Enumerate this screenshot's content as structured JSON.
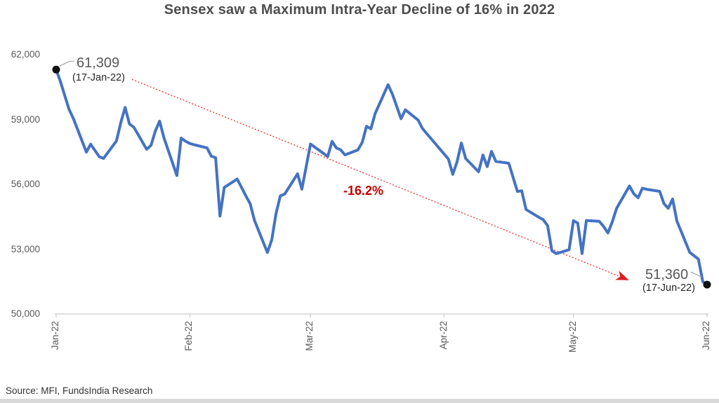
{
  "header": {
    "title": "Sensex saw a Maximum Intra-Year Decline of 16% in 2022"
  },
  "annotations": {
    "start": {
      "value": "61,309",
      "date": "(17-Jan-22)"
    },
    "end": {
      "value": "51,360",
      "date": "(17-Jun-22)"
    },
    "decline_label": "-16.2%"
  },
  "footer": {
    "source": "Source: MFI, FundsIndia Research"
  },
  "colors": {
    "series_blue": "#4472c4",
    "trend_red": "#ed3b3b",
    "arrow_red": "#d42020",
    "decline_red": "#c00000",
    "axis_gray": "#c9c9c9",
    "label_gray": "#595959",
    "marker_black": "#111111",
    "callout_gray": "#a6a6a6",
    "bottom_bar_gray": "#d9d9d9"
  },
  "chart_data": {
    "type": "line",
    "title": "Sensex saw a Maximum Intra-Year Decline of 16% in 2022",
    "xlabel": "",
    "ylabel": "",
    "ylim": [
      50000,
      62000
    ],
    "xlim": [
      "2022-01-17",
      "2022-06-17"
    ],
    "grid": false,
    "legend": "none",
    "y_ticks": [
      {
        "value": 62000,
        "label": "62,000"
      },
      {
        "value": 59000,
        "label": "59,000"
      },
      {
        "value": 56000,
        "label": "56,000"
      },
      {
        "value": 53000,
        "label": "53,000"
      },
      {
        "value": 50000,
        "label": "50,000"
      }
    ],
    "x_ticks": [
      {
        "date": "2022-01-17",
        "label": "Jan-22"
      },
      {
        "date": "2022-02-17",
        "label": "Feb-22"
      },
      {
        "date": "2022-03-17",
        "label": "Mar-22"
      },
      {
        "date": "2022-04-17",
        "label": "Apr-22"
      },
      {
        "date": "2022-05-17",
        "label": "May-22"
      },
      {
        "date": "2022-06-17",
        "label": "Jun-22"
      }
    ],
    "annotations": {
      "max_point": {
        "date": "2022-01-17",
        "value": 61309
      },
      "min_point": {
        "date": "2022-06-17",
        "value": 51360
      },
      "max_intra_year_decline_pct": -16.2
    },
    "series": [
      {
        "name": "Sensex",
        "color": "#4472c4",
        "points": [
          [
            "2022-01-17",
            61309
          ],
          [
            "2022-01-18",
            60754
          ],
          [
            "2022-01-19",
            60098
          ],
          [
            "2022-01-20",
            59465
          ],
          [
            "2022-01-21",
            59037
          ],
          [
            "2022-01-24",
            57491
          ],
          [
            "2022-01-25",
            57858
          ],
          [
            "2022-01-27",
            57277
          ],
          [
            "2022-01-28",
            57200
          ],
          [
            "2022-01-31",
            58014
          ],
          [
            "2022-02-01",
            58863
          ],
          [
            "2022-02-02",
            59558
          ],
          [
            "2022-02-03",
            58788
          ],
          [
            "2022-02-04",
            58645
          ],
          [
            "2022-02-07",
            57621
          ],
          [
            "2022-02-08",
            57808
          ],
          [
            "2022-02-09",
            58466
          ],
          [
            "2022-02-10",
            58926
          ],
          [
            "2022-02-11",
            58153
          ],
          [
            "2022-02-14",
            56406
          ],
          [
            "2022-02-15",
            58142
          ],
          [
            "2022-02-16",
            57996
          ],
          [
            "2022-02-17",
            57892
          ],
          [
            "2022-02-18",
            57833
          ],
          [
            "2022-02-21",
            57684
          ],
          [
            "2022-02-22",
            57301
          ],
          [
            "2022-02-23",
            57232
          ],
          [
            "2022-02-24",
            54530
          ],
          [
            "2022-02-25",
            55858
          ],
          [
            "2022-02-28",
            56247
          ],
          [
            "2022-03-02",
            55469
          ],
          [
            "2022-03-03",
            55103
          ],
          [
            "2022-03-04",
            54334
          ],
          [
            "2022-03-07",
            52843
          ],
          [
            "2022-03-08",
            53424
          ],
          [
            "2022-03-09",
            54647
          ],
          [
            "2022-03-10",
            55464
          ],
          [
            "2022-03-11",
            55550
          ],
          [
            "2022-03-14",
            56486
          ],
          [
            "2022-03-15",
            55776
          ],
          [
            "2022-03-16",
            56816
          ],
          [
            "2022-03-17",
            57864
          ],
          [
            "2022-03-21",
            57292
          ],
          [
            "2022-03-22",
            57989
          ],
          [
            "2022-03-23",
            57685
          ],
          [
            "2022-03-24",
            57595
          ],
          [
            "2022-03-25",
            57362
          ],
          [
            "2022-03-28",
            57593
          ],
          [
            "2022-03-29",
            57944
          ],
          [
            "2022-03-30",
            58684
          ],
          [
            "2022-03-31",
            58569
          ],
          [
            "2022-04-01",
            59277
          ],
          [
            "2022-04-04",
            60612
          ],
          [
            "2022-04-05",
            60177
          ],
          [
            "2022-04-06",
            59611
          ],
          [
            "2022-04-07",
            59035
          ],
          [
            "2022-04-08",
            59447
          ],
          [
            "2022-04-11",
            58964
          ],
          [
            "2022-04-12",
            58577
          ],
          [
            "2022-04-13",
            58339
          ],
          [
            "2022-04-18",
            57167
          ],
          [
            "2022-04-19",
            56463
          ],
          [
            "2022-04-20",
            57037
          ],
          [
            "2022-04-21",
            57911
          ],
          [
            "2022-04-22",
            57197
          ],
          [
            "2022-04-25",
            56580
          ],
          [
            "2022-04-26",
            57356
          ],
          [
            "2022-04-27",
            56819
          ],
          [
            "2022-04-28",
            57521
          ],
          [
            "2022-04-29",
            57061
          ],
          [
            "2022-05-02",
            56975
          ],
          [
            "2022-05-04",
            55669
          ],
          [
            "2022-05-05",
            55702
          ],
          [
            "2022-05-06",
            54836
          ],
          [
            "2022-05-09",
            54471
          ],
          [
            "2022-05-10",
            54365
          ],
          [
            "2022-05-11",
            54088
          ],
          [
            "2022-05-12",
            52930
          ],
          [
            "2022-05-13",
            52794
          ],
          [
            "2022-05-16",
            52974
          ],
          [
            "2022-05-17",
            54319
          ],
          [
            "2022-05-18",
            54208
          ],
          [
            "2022-05-19",
            52792
          ],
          [
            "2022-05-20",
            54326
          ],
          [
            "2022-05-23",
            54289
          ],
          [
            "2022-05-24",
            54052
          ],
          [
            "2022-05-25",
            53749
          ],
          [
            "2022-05-26",
            54253
          ],
          [
            "2022-05-27",
            54885
          ],
          [
            "2022-05-30",
            55926
          ],
          [
            "2022-05-31",
            55566
          ],
          [
            "2022-06-01",
            55381
          ],
          [
            "2022-06-02",
            55818
          ],
          [
            "2022-06-03",
            55769
          ],
          [
            "2022-06-06",
            55675
          ],
          [
            "2022-06-07",
            55107
          ],
          [
            "2022-06-08",
            54892
          ],
          [
            "2022-06-09",
            55320
          ],
          [
            "2022-06-10",
            54303
          ],
          [
            "2022-06-13",
            52847
          ],
          [
            "2022-06-14",
            52693
          ],
          [
            "2022-06-15",
            52541
          ],
          [
            "2022-06-16",
            51496
          ],
          [
            "2022-06-17",
            51360
          ]
        ]
      }
    ]
  }
}
